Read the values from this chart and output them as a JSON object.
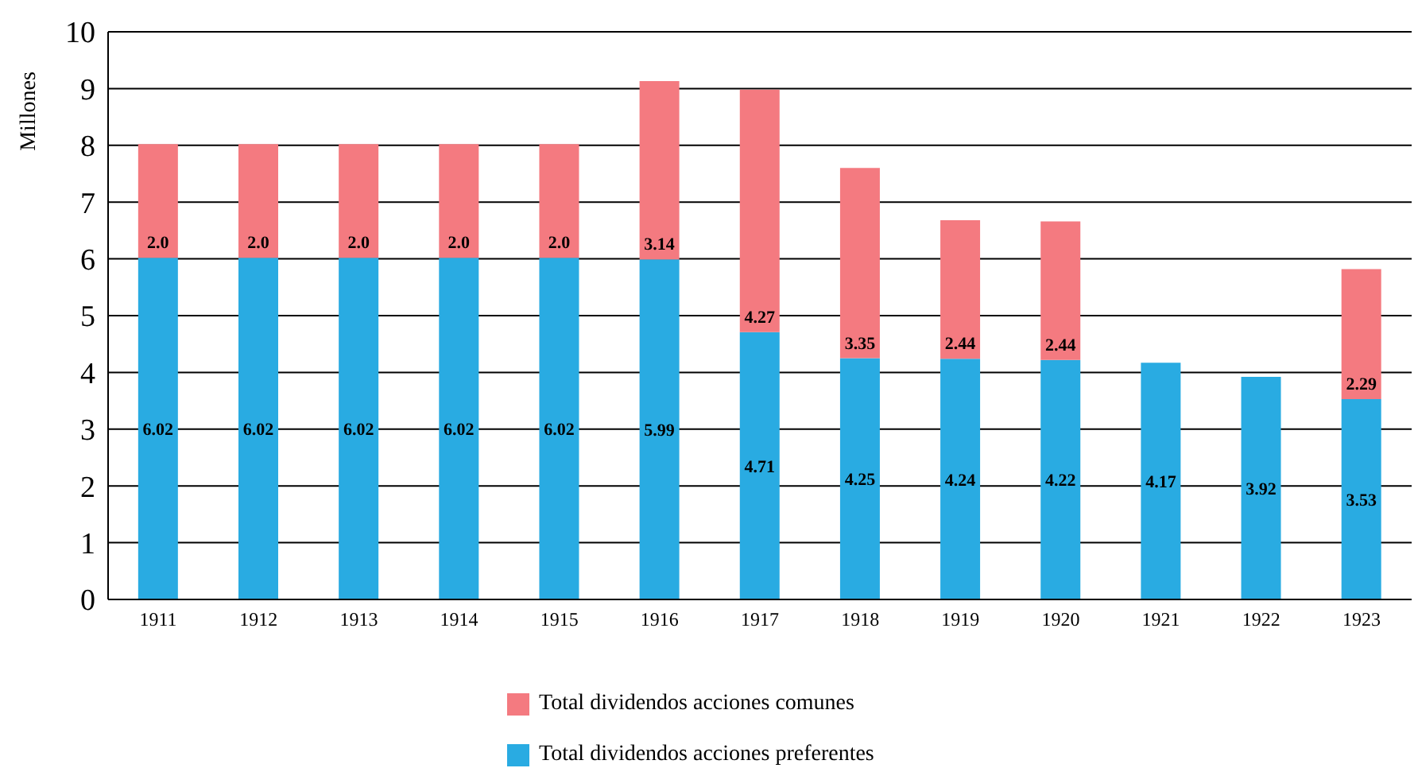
{
  "chart_data": {
    "type": "bar",
    "stacked": true,
    "ylabel": "Millones",
    "categories": [
      "1911",
      "1912",
      "1913",
      "1914",
      "1915",
      "1916",
      "1917",
      "1918",
      "1919",
      "1920",
      "1921",
      "1922",
      "1923"
    ],
    "series": [
      {
        "name": "Total dividendos acciones preferentes",
        "color": "#29abe2",
        "values": [
          6.02,
          6.02,
          6.02,
          6.02,
          6.02,
          5.99,
          4.71,
          4.25,
          4.24,
          4.22,
          4.17,
          3.92,
          3.53
        ],
        "value_labels": [
          "6.02",
          "6.02",
          "6.02",
          "6.02",
          "6.02",
          "5.99",
          "4.71",
          "4.25",
          "4.24",
          "4.22",
          "4.17",
          "3.92",
          "3.53"
        ]
      },
      {
        "name": "Total dividendos acciones comunes",
        "color": "#f47a80",
        "values": [
          2.0,
          2.0,
          2.0,
          2.0,
          2.0,
          3.14,
          4.27,
          3.35,
          2.44,
          2.44,
          null,
          null,
          2.29
        ],
        "value_labels": [
          "2.0",
          "2.0",
          "2.0",
          "2.0",
          "2.0",
          "3.14",
          "4.27",
          "3.35",
          "2.44",
          "2.44",
          null,
          null,
          "2.29"
        ]
      }
    ],
    "ylim": [
      0,
      10
    ],
    "yticks": [
      0,
      1,
      2,
      3,
      4,
      5,
      6,
      7,
      8,
      9,
      10
    ],
    "grid": "y",
    "legend": "bottom"
  }
}
